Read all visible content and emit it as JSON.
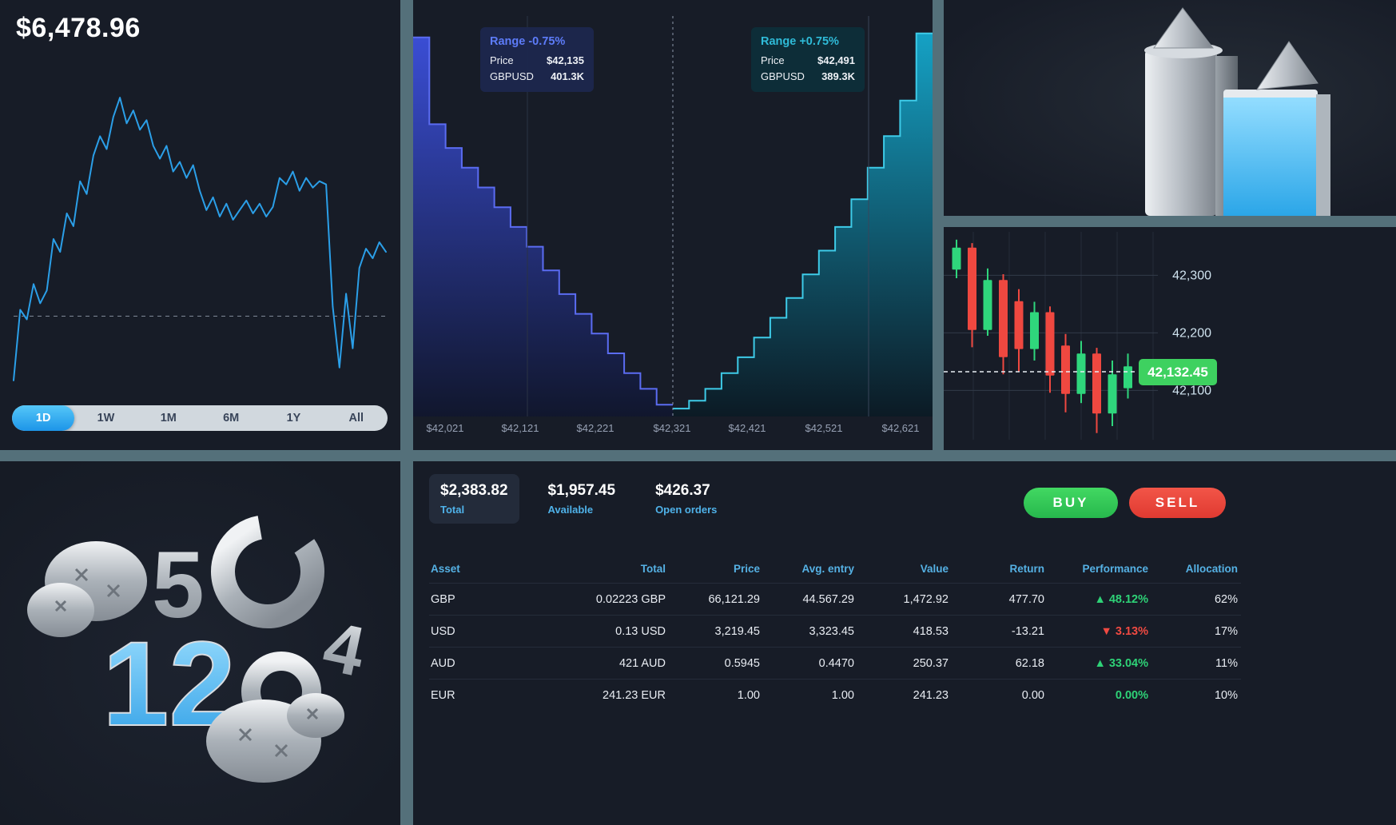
{
  "colors": {
    "panel_bg": "#171c27",
    "divider": "#54707a",
    "accent_blue": "#2b9fe8",
    "bid_blue": "#3c50dd",
    "ask_cyan": "#15b0d6",
    "green": "#2ed277",
    "red": "#f04a42",
    "header_blue": "#55b1e4",
    "badge_green": "#3ed160"
  },
  "portfolio": {
    "balance": "$6,478.96",
    "ranges": [
      {
        "label": "1D",
        "selected": true
      },
      {
        "label": "1W",
        "selected": false
      },
      {
        "label": "1M",
        "selected": false
      },
      {
        "label": "6M",
        "selected": false
      },
      {
        "label": "1Y",
        "selected": false
      },
      {
        "label": "All",
        "selected": false
      }
    ]
  },
  "depth": {
    "tooltip_left": {
      "title": "Range -0.75%",
      "price_label": "Price",
      "price_value": "$42,135",
      "pair_label": "GBPUSD",
      "pair_value": "401.3K"
    },
    "tooltip_right": {
      "title": "Range +0.75%",
      "price_label": "Price",
      "price_value": "$42,491",
      "pair_label": "GBPUSD",
      "pair_value": "389.3K"
    },
    "x_labels": [
      "$42,021",
      "$42,121",
      "$42,221",
      "$42,321",
      "$42,421",
      "$42,521",
      "$42,621"
    ]
  },
  "candlestick": {
    "y_labels": [
      "42,300",
      "42,200",
      "42,100"
    ],
    "price_badge": "42,132.45"
  },
  "account": {
    "summary": [
      {
        "value": "$2,383.82",
        "label": "Total",
        "highlight": true
      },
      {
        "value": "$1,957.45",
        "label": "Available",
        "highlight": false
      },
      {
        "value": "$426.37",
        "label": "Open orders",
        "highlight": false
      }
    ],
    "buy_label": "BUY",
    "sell_label": "SELL"
  },
  "positions_table": {
    "headers": [
      "Asset",
      "Total",
      "Price",
      "Avg. entry",
      "Value",
      "Return",
      "Performance",
      "Allocation"
    ],
    "rows": [
      {
        "asset": "GBP",
        "total": "0.02223 GBP",
        "price": "66,121.29",
        "avg_entry": "44.567.29",
        "value": "1,472.92",
        "return": "477.70",
        "performance": "48.12%",
        "direction": "up",
        "allocation": "62%"
      },
      {
        "asset": "USD",
        "total": "0.13 USD",
        "price": "3,219.45",
        "avg_entry": "3,323.45",
        "value": "418.53",
        "return": "-13.21",
        "performance": "3.13%",
        "direction": "down",
        "allocation": "17%"
      },
      {
        "asset": "AUD",
        "total": "421 AUD",
        "price": "0.5945",
        "avg_entry": "0.4470",
        "value": "250.37",
        "return": "62.18",
        "performance": "33.04%",
        "direction": "up",
        "allocation": "11%"
      },
      {
        "asset": "EUR",
        "total": "241.23 EUR",
        "price": "1.00",
        "avg_entry": "1.00",
        "value": "241.23",
        "return": "0.00",
        "performance": "0.00%",
        "direction": "flat",
        "allocation": "10%"
      }
    ]
  },
  "decor": {
    "digit_five": "5",
    "digit_twelve": "12",
    "digit_four": "4"
  },
  "chart_data": [
    {
      "id": "portfolio_line",
      "type": "line",
      "title": "Portfolio value, 1D",
      "baseline": 25,
      "values": [
        5,
        27,
        24,
        35,
        29,
        33,
        49,
        45,
        57,
        53,
        67,
        63,
        75,
        81,
        77,
        87,
        93,
        85,
        89,
        83,
        86,
        78,
        74,
        78,
        70,
        73,
        68,
        72,
        64,
        58,
        62,
        56,
        60,
        55,
        58,
        61,
        57,
        60,
        56,
        59,
        68,
        66,
        70,
        64,
        68,
        65,
        67,
        66,
        28,
        9,
        32,
        15,
        40,
        46,
        43,
        48,
        45
      ]
    },
    {
      "id": "depth",
      "type": "area",
      "subtype": "orderbook-depth",
      "title": "GBPUSD market depth",
      "x_labels": [
        "$42,021",
        "$42,121",
        "$42,221",
        "$42,321",
        "$42,421",
        "$42,521",
        "$42,621"
      ],
      "mid_price": 42321,
      "bids": [
        96,
        74,
        68,
        63,
        58,
        53,
        48,
        43,
        37,
        31,
        26,
        21,
        16,
        11,
        7,
        3
      ],
      "asks": [
        2,
        4,
        7,
        11,
        15,
        20,
        25,
        30,
        36,
        42,
        48,
        55,
        63,
        71,
        80,
        97
      ]
    },
    {
      "id": "candles",
      "type": "candlestick",
      "ylim": [
        42020,
        42370
      ],
      "gridlines": [
        42300,
        42200,
        42100
      ],
      "current_price": 42132.45,
      "candles": [
        [
          42310,
          42362,
          42295,
          42348
        ],
        [
          42348,
          42356,
          42175,
          42205
        ],
        [
          42205,
          42312,
          42195,
          42292
        ],
        [
          42292,
          42302,
          42128,
          42158
        ],
        [
          42255,
          42276,
          42132,
          42172
        ],
        [
          42172,
          42254,
          42152,
          42236
        ],
        [
          42236,
          42246,
          42096,
          42126
        ],
        [
          42178,
          42198,
          42062,
          42094
        ],
        [
          42094,
          42186,
          42078,
          42164
        ],
        [
          42164,
          42174,
          42026,
          42060
        ],
        [
          42060,
          42152,
          42038,
          42128
        ],
        [
          42104,
          42164,
          42086,
          42142
        ]
      ]
    }
  ]
}
